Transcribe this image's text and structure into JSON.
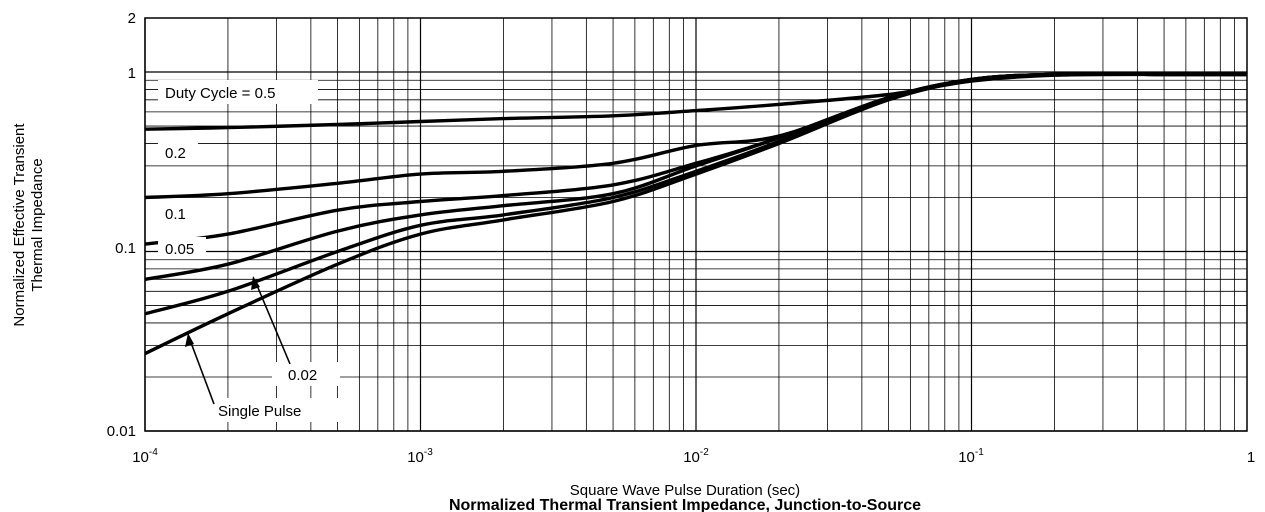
{
  "chart_data": {
    "type": "line",
    "title": "Normalized Thermal Transient Impedance, Junction-to-Source",
    "xlabel": "Square Wave Pulse Duration (sec)",
    "ylabel": [
      "Normalized Effective Transient",
      "Thermal Impedance"
    ],
    "x_scale": "log",
    "y_scale": "log",
    "xlim": [
      0.0001,
      1
    ],
    "ylim": [
      0.01,
      2
    ],
    "x_ticks": [
      {
        "value": 0.0001,
        "base": "10",
        "exp": "-4"
      },
      {
        "value": 0.001,
        "base": "10",
        "exp": "-3"
      },
      {
        "value": 0.01,
        "base": "10",
        "exp": "-2"
      },
      {
        "value": 0.1,
        "base": "10",
        "exp": "-1"
      },
      {
        "value": 1,
        "base": "1",
        "exp": ""
      }
    ],
    "y_ticks": [
      {
        "value": 0.01,
        "label": "0.01"
      },
      {
        "value": 0.1,
        "label": "0.1"
      },
      {
        "value": 1,
        "label": "1"
      },
      {
        "value": 2,
        "label": "2"
      }
    ],
    "grid": true,
    "series": [
      {
        "name": "Duty Cycle = 0.5",
        "x": [
          0.0001,
          0.0002,
          0.0005,
          0.001,
          0.002,
          0.005,
          0.01,
          0.02,
          0.05,
          0.1,
          0.2,
          0.5,
          1
        ],
        "y": [
          0.48,
          0.49,
          0.51,
          0.53,
          0.55,
          0.57,
          0.61,
          0.66,
          0.75,
          0.89,
          0.96,
          0.97,
          0.97
        ]
      },
      {
        "name": "0.2",
        "x": [
          0.0001,
          0.0002,
          0.0005,
          0.001,
          0.002,
          0.005,
          0.01,
          0.02,
          0.05,
          0.1,
          0.2,
          0.5,
          1
        ],
        "y": [
          0.2,
          0.21,
          0.24,
          0.27,
          0.28,
          0.31,
          0.39,
          0.44,
          0.72,
          0.91,
          0.97,
          0.97,
          0.97
        ]
      },
      {
        "name": "0.1",
        "x": [
          0.0001,
          0.0002,
          0.0005,
          0.001,
          0.002,
          0.005,
          0.01,
          0.02,
          0.05,
          0.1,
          0.2,
          0.5,
          1
        ],
        "y": [
          0.11,
          0.125,
          0.17,
          0.19,
          0.205,
          0.235,
          0.31,
          0.43,
          0.72,
          0.91,
          0.97,
          0.97,
          0.97
        ]
      },
      {
        "name": "0.05",
        "x": [
          0.0001,
          0.0002,
          0.0005,
          0.001,
          0.002,
          0.005,
          0.01,
          0.02,
          0.05,
          0.1,
          0.2,
          0.5,
          1
        ],
        "y": [
          0.07,
          0.085,
          0.13,
          0.16,
          0.18,
          0.21,
          0.3,
          0.43,
          0.72,
          0.91,
          0.97,
          0.97,
          0.97
        ]
      },
      {
        "name": "0.02",
        "x": [
          0.0001,
          0.0002,
          0.0005,
          0.001,
          0.002,
          0.005,
          0.01,
          0.02,
          0.05,
          0.1,
          0.2,
          0.5,
          1
        ],
        "y": [
          0.045,
          0.06,
          0.1,
          0.14,
          0.16,
          0.2,
          0.28,
          0.41,
          0.71,
          0.9,
          0.97,
          0.97,
          0.97
        ]
      },
      {
        "name": "Single Pulse",
        "x": [
          0.0001,
          0.0002,
          0.0005,
          0.001,
          0.002,
          0.005,
          0.01,
          0.02,
          0.05,
          0.1,
          0.2,
          0.5,
          1
        ],
        "y": [
          0.027,
          0.045,
          0.085,
          0.125,
          0.15,
          0.19,
          0.27,
          0.4,
          0.7,
          0.9,
          0.97,
          0.97,
          0.97
        ]
      }
    ],
    "annotations": {
      "duty_cycle": "Duty Cycle = 0.5",
      "d02": "0.2",
      "d01": "0.1",
      "d005": "0.05",
      "d002": "0.02",
      "single": "Single Pulse"
    }
  }
}
